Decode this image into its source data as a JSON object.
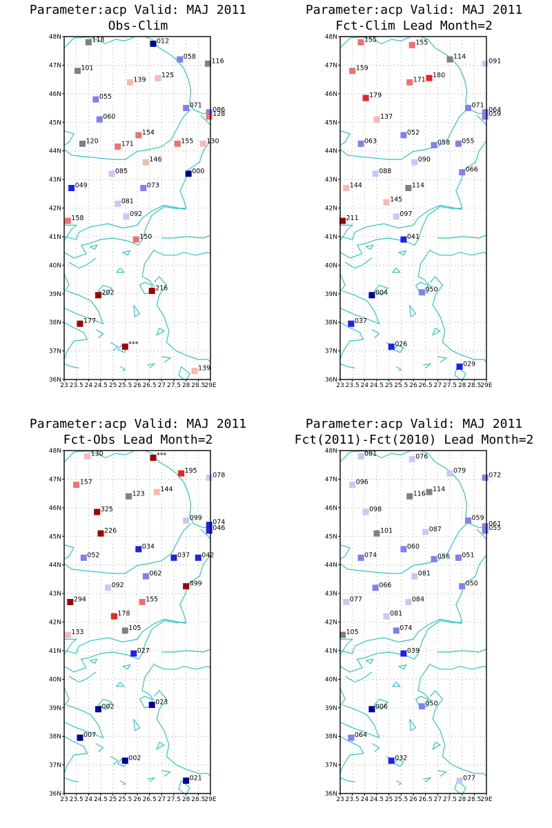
{
  "lon_ticks": [
    "23",
    "23.5",
    "24",
    "24.5",
    "25",
    "25.5",
    "26",
    "26.5",
    "27",
    "27.5",
    "28",
    "28.5",
    "29E"
  ],
  "lat_ticks": [
    "48N",
    "47N",
    "46N",
    "45N",
    "44N",
    "43N",
    "42N",
    "41N",
    "40N",
    "39N",
    "38N",
    "37N",
    "36N"
  ],
  "colors": {
    "coast": "#2ec4c0",
    "grid": "#9a9a9a",
    "dark_red": "#a00000",
    "red": "#ee2222",
    "salmon": "#f07070",
    "light_pink": "#f8b8b8",
    "gray": "#808080",
    "pale_blue": "#c8c8f8",
    "light_blue": "#8080f0",
    "blue": "#2020e8",
    "dark_blue": "#000090"
  },
  "panels": [
    {
      "title": "Parameter:acp Valid: MAJ 2011",
      "subtitle": "Obs-Clim",
      "stations": [
        {
          "lon": 24.0,
          "lat": 47.8,
          "label": "118",
          "color": "gray"
        },
        {
          "lon": 26.65,
          "lat": 47.75,
          "label": "012",
          "color": "dark_blue"
        },
        {
          "lon": 27.75,
          "lat": 47.2,
          "label": "058",
          "color": "light_blue"
        },
        {
          "lon": 28.9,
          "lat": 47.05,
          "label": "116",
          "color": "gray"
        },
        {
          "lon": 23.55,
          "lat": 46.8,
          "label": "101",
          "color": "gray"
        },
        {
          "lon": 25.7,
          "lat": 46.4,
          "label": "139",
          "color": "light_pink"
        },
        {
          "lon": 26.85,
          "lat": 46.55,
          "label": "125",
          "color": "light_pink"
        },
        {
          "lon": 24.3,
          "lat": 45.8,
          "label": "055",
          "color": "light_blue"
        },
        {
          "lon": 28.0,
          "lat": 45.5,
          "label": "071",
          "color": "light_blue"
        },
        {
          "lon": 28.95,
          "lat": 45.35,
          "label": "086",
          "color": "light_blue"
        },
        {
          "lon": 28.95,
          "lat": 45.2,
          "label": "128",
          "color": "salmon"
        },
        {
          "lon": 24.45,
          "lat": 45.1,
          "label": "060",
          "color": "light_blue"
        },
        {
          "lon": 26.05,
          "lat": 44.55,
          "label": "154",
          "color": "salmon"
        },
        {
          "lon": 23.75,
          "lat": 44.25,
          "label": "120",
          "color": "gray"
        },
        {
          "lon": 25.2,
          "lat": 44.15,
          "label": "171",
          "color": "salmon"
        },
        {
          "lon": 27.65,
          "lat": 44.25,
          "label": "155",
          "color": "salmon"
        },
        {
          "lon": 28.7,
          "lat": 44.25,
          "label": "130",
          "color": "light_pink"
        },
        {
          "lon": 26.35,
          "lat": 43.6,
          "label": "146",
          "color": "light_pink"
        },
        {
          "lon": 24.95,
          "lat": 43.2,
          "label": "085",
          "color": "pale_blue"
        },
        {
          "lon": 28.1,
          "lat": 43.2,
          "label": "000",
          "color": "dark_blue"
        },
        {
          "lon": 23.3,
          "lat": 42.7,
          "label": "049",
          "color": "blue"
        },
        {
          "lon": 26.25,
          "lat": 42.7,
          "label": "073",
          "color": "light_blue"
        },
        {
          "lon": 25.2,
          "lat": 42.15,
          "label": "081",
          "color": "pale_blue"
        },
        {
          "lon": 25.55,
          "lat": 41.7,
          "label": "092",
          "color": "pale_blue"
        },
        {
          "lon": 23.15,
          "lat": 41.55,
          "label": "158",
          "color": "salmon"
        },
        {
          "lon": 25.95,
          "lat": 40.9,
          "label": "150",
          "color": "salmon"
        },
        {
          "lon": 24.4,
          "lat": 38.95,
          "label": "202",
          "color": "dark_red"
        },
        {
          "lon": 26.6,
          "lat": 39.1,
          "label": "216",
          "color": "dark_red"
        },
        {
          "lon": 23.65,
          "lat": 37.95,
          "label": "177",
          "color": "dark_red"
        },
        {
          "lon": 25.5,
          "lat": 37.15,
          "label": "***",
          "color": "dark_red"
        },
        {
          "lon": 28.35,
          "lat": 36.3,
          "label": "139",
          "color": "light_pink"
        }
      ]
    },
    {
      "title": "Parameter:acp Valid: MAJ 2011",
      "subtitle": "Fct-Clim Lead Month=2",
      "stations": [
        {
          "lon": 23.85,
          "lat": 47.8,
          "label": "155",
          "color": "salmon"
        },
        {
          "lon": 25.95,
          "lat": 47.7,
          "label": "155",
          "color": "salmon"
        },
        {
          "lon": 27.5,
          "lat": 47.2,
          "label": "114",
          "color": "gray"
        },
        {
          "lon": 28.95,
          "lat": 47.05,
          "label": "091",
          "color": "pale_blue"
        },
        {
          "lon": 23.5,
          "lat": 46.8,
          "label": "159",
          "color": "salmon"
        },
        {
          "lon": 25.85,
          "lat": 46.4,
          "label": "171",
          "color": "salmon"
        },
        {
          "lon": 26.65,
          "lat": 46.55,
          "label": "180",
          "color": "red"
        },
        {
          "lon": 24.05,
          "lat": 45.85,
          "label": "179",
          "color": "red"
        },
        {
          "lon": 28.25,
          "lat": 45.5,
          "label": "071",
          "color": "light_blue"
        },
        {
          "lon": 28.95,
          "lat": 45.35,
          "label": "064",
          "color": "light_blue"
        },
        {
          "lon": 28.95,
          "lat": 45.2,
          "label": "059",
          "color": "light_blue"
        },
        {
          "lon": 24.5,
          "lat": 45.1,
          "label": "137",
          "color": "light_pink"
        },
        {
          "lon": 25.6,
          "lat": 44.55,
          "label": "052",
          "color": "light_blue"
        },
        {
          "lon": 23.85,
          "lat": 44.25,
          "label": "063",
          "color": "light_blue"
        },
        {
          "lon": 26.85,
          "lat": 44.2,
          "label": "058",
          "color": "light_blue"
        },
        {
          "lon": 27.85,
          "lat": 44.25,
          "label": "055",
          "color": "light_blue"
        },
        {
          "lon": 26.05,
          "lat": 43.6,
          "label": "090",
          "color": "pale_blue"
        },
        {
          "lon": 24.45,
          "lat": 43.2,
          "label": "088",
          "color": "pale_blue"
        },
        {
          "lon": 28.0,
          "lat": 43.25,
          "label": "066",
          "color": "light_blue"
        },
        {
          "lon": 23.25,
          "lat": 42.7,
          "label": "144",
          "color": "light_pink"
        },
        {
          "lon": 25.8,
          "lat": 42.7,
          "label": "114",
          "color": "gray"
        },
        {
          "lon": 24.9,
          "lat": 42.2,
          "label": "145",
          "color": "light_pink"
        },
        {
          "lon": 25.3,
          "lat": 41.7,
          "label": "097",
          "color": "pale_blue"
        },
        {
          "lon": 23.1,
          "lat": 41.55,
          "label": "211",
          "color": "dark_red"
        },
        {
          "lon": 25.6,
          "lat": 40.9,
          "label": "041",
          "color": "blue"
        },
        {
          "lon": 24.3,
          "lat": 38.95,
          "label": "004",
          "color": "dark_blue"
        },
        {
          "lon": 26.35,
          "lat": 39.05,
          "label": "050",
          "color": "light_blue"
        },
        {
          "lon": 23.45,
          "lat": 37.95,
          "label": "037",
          "color": "blue"
        },
        {
          "lon": 25.1,
          "lat": 37.15,
          "label": "026",
          "color": "blue"
        },
        {
          "lon": 27.9,
          "lat": 36.45,
          "label": "029",
          "color": "blue"
        }
      ]
    },
    {
      "title": "Parameter:acp Valid: MAJ 2011",
      "subtitle": "Fct-Obs Lead Month=2",
      "stations": [
        {
          "lon": 23.95,
          "lat": 47.8,
          "label": "130",
          "color": "light_pink"
        },
        {
          "lon": 26.65,
          "lat": 47.75,
          "label": "***",
          "color": "dark_red"
        },
        {
          "lon": 27.8,
          "lat": 47.2,
          "label": "195",
          "color": "red"
        },
        {
          "lon": 28.95,
          "lat": 47.05,
          "label": "078",
          "color": "pale_blue"
        },
        {
          "lon": 23.5,
          "lat": 46.8,
          "label": "157",
          "color": "salmon"
        },
        {
          "lon": 25.65,
          "lat": 46.4,
          "label": "123",
          "color": "gray"
        },
        {
          "lon": 26.8,
          "lat": 46.55,
          "label": "144",
          "color": "light_pink"
        },
        {
          "lon": 24.35,
          "lat": 45.85,
          "label": "325",
          "color": "dark_red"
        },
        {
          "lon": 28.0,
          "lat": 45.55,
          "label": "099",
          "color": "pale_blue"
        },
        {
          "lon": 28.95,
          "lat": 45.4,
          "label": "074",
          "color": "blue"
        },
        {
          "lon": 28.95,
          "lat": 45.2,
          "label": "046",
          "color": "blue"
        },
        {
          "lon": 24.5,
          "lat": 45.1,
          "label": "226",
          "color": "dark_red"
        },
        {
          "lon": 26.05,
          "lat": 44.55,
          "label": "034",
          "color": "blue"
        },
        {
          "lon": 23.8,
          "lat": 44.25,
          "label": "052",
          "color": "light_blue"
        },
        {
          "lon": 27.5,
          "lat": 44.25,
          "label": "037",
          "color": "blue"
        },
        {
          "lon": 28.5,
          "lat": 44.25,
          "label": "042",
          "color": "blue"
        },
        {
          "lon": 26.35,
          "lat": 43.6,
          "label": "062",
          "color": "light_blue"
        },
        {
          "lon": 24.8,
          "lat": 43.2,
          "label": "092",
          "color": "pale_blue"
        },
        {
          "lon": 28.0,
          "lat": 43.25,
          "label": "899",
          "color": "dark_red"
        },
        {
          "lon": 23.25,
          "lat": 42.7,
          "label": "294",
          "color": "dark_red"
        },
        {
          "lon": 26.2,
          "lat": 42.7,
          "label": "155",
          "color": "salmon"
        },
        {
          "lon": 25.05,
          "lat": 42.2,
          "label": "178",
          "color": "red"
        },
        {
          "lon": 25.5,
          "lat": 41.7,
          "label": "105",
          "color": "gray"
        },
        {
          "lon": 23.15,
          "lat": 41.55,
          "label": "133",
          "color": "light_pink"
        },
        {
          "lon": 25.85,
          "lat": 40.9,
          "label": "027",
          "color": "blue"
        },
        {
          "lon": 24.4,
          "lat": 38.95,
          "label": "002",
          "color": "dark_blue"
        },
        {
          "lon": 26.6,
          "lat": 39.1,
          "label": "023",
          "color": "dark_blue"
        },
        {
          "lon": 23.65,
          "lat": 37.95,
          "label": "007",
          "color": "dark_blue"
        },
        {
          "lon": 25.5,
          "lat": 37.15,
          "label": "002",
          "color": "dark_blue"
        },
        {
          "lon": 28.0,
          "lat": 36.45,
          "label": "021",
          "color": "dark_blue"
        }
      ]
    },
    {
      "title": "Parameter:acp Valid: MAJ 2011",
      "subtitle": "Fct(2011)-Fct(2010) Lead Month=2",
      "stations": [
        {
          "lon": 23.85,
          "lat": 47.8,
          "label": "081",
          "color": "pale_blue"
        },
        {
          "lon": 25.95,
          "lat": 47.7,
          "label": "076",
          "color": "pale_blue"
        },
        {
          "lon": 27.5,
          "lat": 47.2,
          "label": "079",
          "color": "pale_blue"
        },
        {
          "lon": 28.95,
          "lat": 47.05,
          "label": "072",
          "color": "light_blue"
        },
        {
          "lon": 23.5,
          "lat": 46.8,
          "label": "096",
          "color": "pale_blue"
        },
        {
          "lon": 25.85,
          "lat": 46.4,
          "label": "116",
          "color": "gray"
        },
        {
          "lon": 26.65,
          "lat": 46.55,
          "label": "114",
          "color": "gray"
        },
        {
          "lon": 24.05,
          "lat": 45.85,
          "label": "098",
          "color": "pale_blue"
        },
        {
          "lon": 28.25,
          "lat": 45.55,
          "label": "059",
          "color": "light_blue"
        },
        {
          "lon": 28.95,
          "lat": 45.35,
          "label": "061",
          "color": "light_blue"
        },
        {
          "lon": 28.95,
          "lat": 45.2,
          "label": "055",
          "color": "light_blue"
        },
        {
          "lon": 24.5,
          "lat": 45.1,
          "label": "101",
          "color": "gray"
        },
        {
          "lon": 25.6,
          "lat": 44.55,
          "label": "060",
          "color": "light_blue"
        },
        {
          "lon": 26.5,
          "lat": 45.15,
          "label": "087",
          "color": "pale_blue"
        },
        {
          "lon": 23.85,
          "lat": 44.25,
          "label": "074",
          "color": "light_blue"
        },
        {
          "lon": 26.85,
          "lat": 44.2,
          "label": "056",
          "color": "light_blue"
        },
        {
          "lon": 27.85,
          "lat": 44.25,
          "label": "051",
          "color": "light_blue"
        },
        {
          "lon": 26.05,
          "lat": 43.6,
          "label": "081",
          "color": "pale_blue"
        },
        {
          "lon": 24.45,
          "lat": 43.2,
          "label": "066",
          "color": "light_blue"
        },
        {
          "lon": 28.0,
          "lat": 43.25,
          "label": "050",
          "color": "light_blue"
        },
        {
          "lon": 23.25,
          "lat": 42.7,
          "label": "077",
          "color": "pale_blue"
        },
        {
          "lon": 25.8,
          "lat": 42.7,
          "label": "084",
          "color": "pale_blue"
        },
        {
          "lon": 24.9,
          "lat": 42.2,
          "label": "081",
          "color": "pale_blue"
        },
        {
          "lon": 25.3,
          "lat": 41.7,
          "label": "074",
          "color": "light_blue"
        },
        {
          "lon": 23.1,
          "lat": 41.55,
          "label": "105",
          "color": "gray"
        },
        {
          "lon": 25.6,
          "lat": 40.9,
          "label": "039",
          "color": "blue"
        },
        {
          "lon": 24.3,
          "lat": 38.95,
          "label": "006",
          "color": "dark_blue"
        },
        {
          "lon": 26.35,
          "lat": 39.05,
          "label": "050",
          "color": "light_blue"
        },
        {
          "lon": 23.45,
          "lat": 37.95,
          "label": "064",
          "color": "light_blue"
        },
        {
          "lon": 25.1,
          "lat": 37.15,
          "label": "032",
          "color": "blue"
        },
        {
          "lon": 27.9,
          "lat": 36.45,
          "label": "077",
          "color": "pale_blue"
        }
      ]
    }
  ]
}
